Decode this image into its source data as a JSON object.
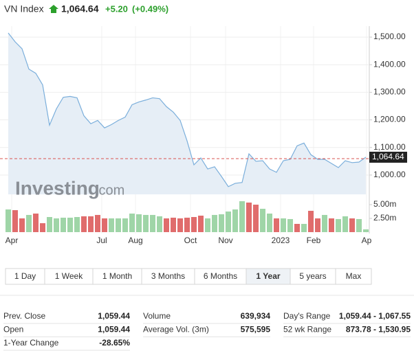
{
  "header": {
    "name": "VN Index",
    "price": "1,064.64",
    "change": "+5.20",
    "change_pct": "(+0.49%)"
  },
  "chart_data": [
    {
      "type": "area",
      "color": "#7aaedb",
      "fill": "#e6eef6",
      "values": [
        1515,
        1483,
        1458,
        1384,
        1369,
        1327,
        1181,
        1240,
        1282,
        1285,
        1280,
        1215,
        1186,
        1198,
        1171,
        1183,
        1198,
        1210,
        1255,
        1265,
        1272,
        1280,
        1277,
        1248,
        1228,
        1198,
        1124,
        1037,
        1062,
        1022,
        1030,
        995,
        958,
        970,
        973,
        1077,
        1050,
        1052,
        1022,
        1010,
        1052,
        1057,
        1106,
        1116,
        1074,
        1057,
        1057,
        1042,
        1027,
        1052,
        1045,
        1047,
        1064.64
      ],
      "ylim": [
        930,
        1540
      ],
      "yticks": [
        {
          "value": 1000,
          "label": "1,000.00"
        },
        {
          "value": 1100,
          "label": "1,100.00"
        },
        {
          "value": 1200,
          "label": "1,200.00"
        },
        {
          "value": 1300,
          "label": "1,300.00"
        },
        {
          "value": 1400,
          "label": "1,400.00"
        },
        {
          "value": 1500,
          "label": "1,500.00"
        }
      ],
      "xticks": [
        {
          "value": 0.5,
          "label": "Apr"
        },
        {
          "value": 13.6,
          "label": "Jul"
        },
        {
          "value": 18.5,
          "label": "Aug"
        },
        {
          "value": 26.5,
          "label": "Oct"
        },
        {
          "value": 31.6,
          "label": "Nov"
        },
        {
          "value": 39.6,
          "label": "2023"
        },
        {
          "value": 44.4,
          "label": "Feb"
        },
        {
          "value": 52.1,
          "label": "Ap"
        }
      ],
      "reference_line": 1059.44,
      "reference_color": "#d9534f",
      "watermark": [
        "Investing",
        ".com"
      ]
    },
    {
      "type": "bar",
      "values": [
        4.13,
        4.0,
        2.5,
        3.13,
        3.38,
        1.63,
        2.75,
        2.5,
        2.63,
        2.63,
        2.75,
        2.88,
        2.88,
        3.13,
        2.5,
        2.5,
        2.5,
        2.5,
        3.38,
        3.25,
        3.13,
        3.13,
        2.88,
        2.5,
        2.63,
        2.5,
        2.63,
        2.75,
        3.0,
        2.5,
        3.13,
        3.25,
        3.75,
        4.13,
        5.63,
        5.38,
        5.0,
        4.25,
        3.38,
        2.5,
        2.5,
        2.38,
        1.5,
        1.5,
        3.88,
        2.5,
        3.13,
        2.5,
        2.38,
        2.88,
        2.5,
        2.38,
        0.5
      ],
      "colors": [
        "#9fd5a7",
        "#e06c6c",
        "#e06c6c",
        "#9fd5a7",
        "#e06c6c",
        "#e06c6c",
        "#9fd5a7",
        "#9fd5a7",
        "#9fd5a7",
        "#9fd5a7",
        "#9fd5a7",
        "#e06c6c",
        "#e06c6c",
        "#e06c6c",
        "#e06c6c",
        "#9fd5a7",
        "#9fd5a7",
        "#9fd5a7",
        "#9fd5a7",
        "#9fd5a7",
        "#9fd5a7",
        "#9fd5a7",
        "#9fd5a7",
        "#e06c6c",
        "#e06c6c",
        "#e06c6c",
        "#e06c6c",
        "#e06c6c",
        "#e06c6c",
        "#9fd5a7",
        "#9fd5a7",
        "#9fd5a7",
        "#9fd5a7",
        "#9fd5a7",
        "#9fd5a7",
        "#e06c6c",
        "#e06c6c",
        "#9fd5a7",
        "#9fd5a7",
        "#e06c6c",
        "#9fd5a7",
        "#9fd5a7",
        "#e06c6c",
        "#9fd5a7",
        "#e06c6c",
        "#e06c6c",
        "#9fd5a7",
        "#e06c6c",
        "#9fd5a7",
        "#9fd5a7",
        "#e06c6c",
        "#9fd5a7",
        "#9fd5a7"
      ],
      "ylim": [
        0,
        5.75
      ],
      "yticks": [
        {
          "value": 5,
          "label": "5.00m"
        },
        {
          "value": 2.5,
          "label": "2.50m"
        }
      ]
    }
  ],
  "tabs": [
    "1 Day",
    "1 Week",
    "1 Month",
    "3 Months",
    "6 Months",
    "1 Year",
    "5 years",
    "Max"
  ],
  "active_tab": 5,
  "stats": [
    [
      [
        "Prev. Close",
        "1,059.44"
      ],
      [
        "Open",
        "1,059.44"
      ],
      [
        "1-Year Change",
        "-28.65%"
      ]
    ],
    [
      [
        "Volume",
        "639,934"
      ],
      [
        "Average Vol. (3m)",
        "575,595"
      ]
    ],
    [
      [
        "Day's Range",
        "1,059.44 - 1,067.55"
      ],
      [
        "52 wk Range",
        "873.78 - 1,530.95"
      ]
    ]
  ]
}
